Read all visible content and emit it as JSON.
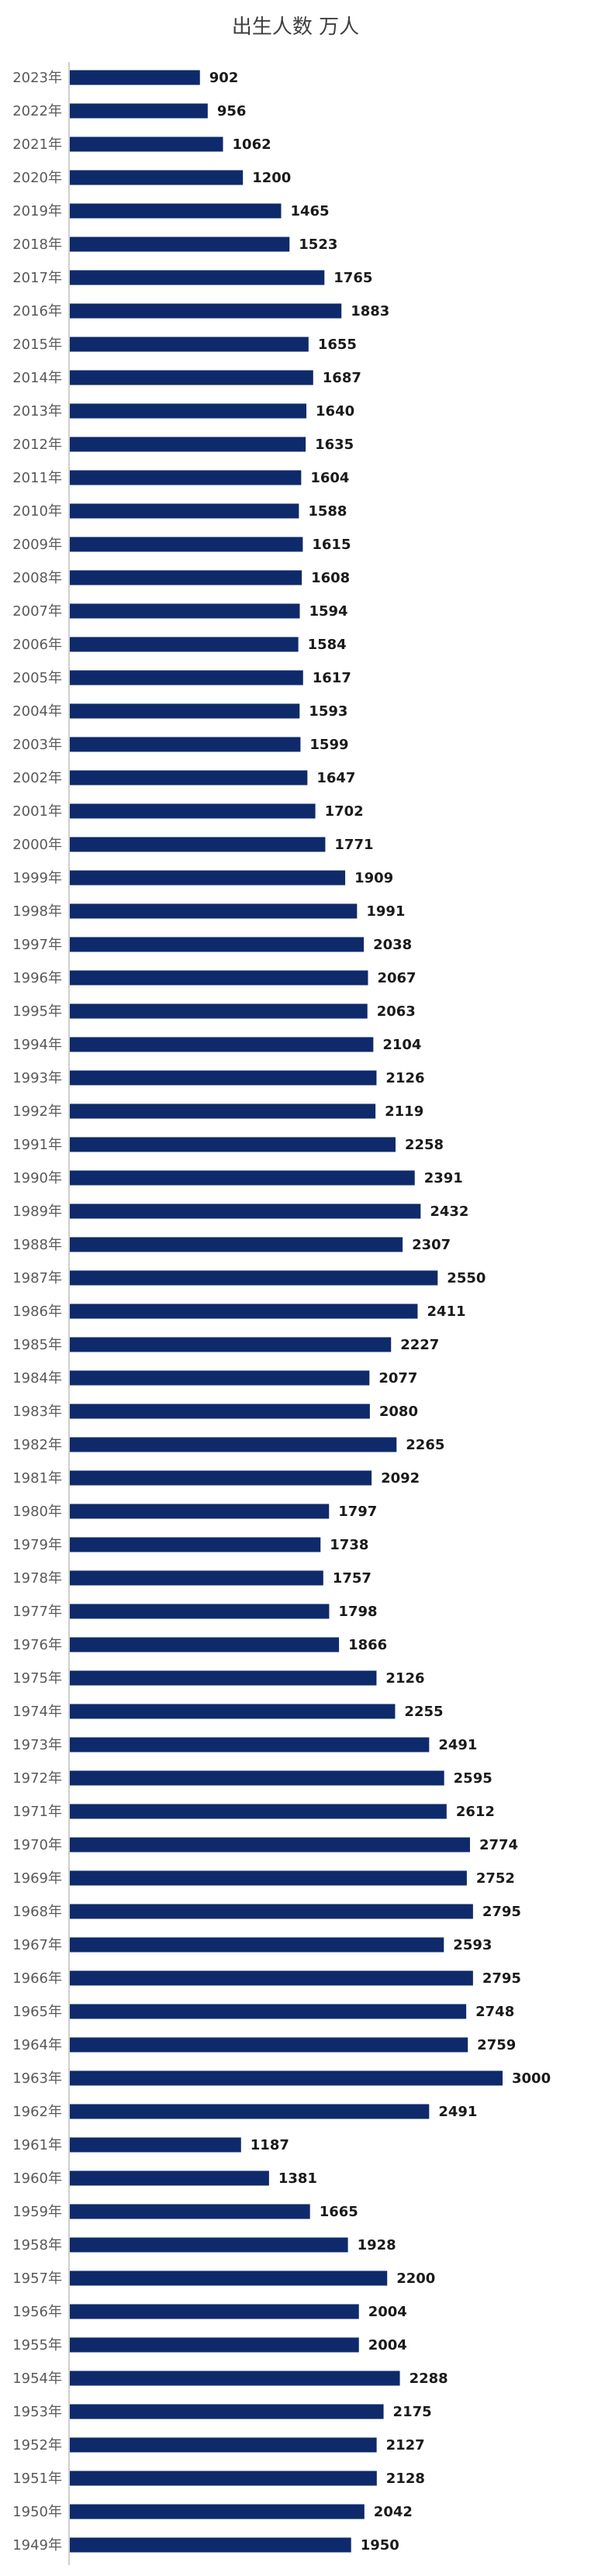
{
  "chart_data": {
    "type": "bar",
    "orientation": "horizontal",
    "title": "出生人数 万人",
    "xlabel": "",
    "ylabel": "",
    "bar_color": "#0e2a6b",
    "axis_color": "#bfbfbf",
    "grid": false,
    "legend": "none",
    "xlim": [
      0,
      3000
    ],
    "categories": [
      "2023年",
      "2022年",
      "2021年",
      "2020年",
      "2019年",
      "2018年",
      "2017年",
      "2016年",
      "2015年",
      "2014年",
      "2013年",
      "2012年",
      "2011年",
      "2010年",
      "2009年",
      "2008年",
      "2007年",
      "2006年",
      "2005年",
      "2004年",
      "2003年",
      "2002年",
      "2001年",
      "2000年",
      "1999年",
      "1998年",
      "1997年",
      "1996年",
      "1995年",
      "1994年",
      "1993年",
      "1992年",
      "1991年",
      "1990年",
      "1989年",
      "1988年",
      "1987年",
      "1986年",
      "1985年",
      "1984年",
      "1983年",
      "1982年",
      "1981年",
      "1980年",
      "1979年",
      "1978年",
      "1977年",
      "1976年",
      "1975年",
      "1974年",
      "1973年",
      "1972年",
      "1971年",
      "1970年",
      "1969年",
      "1968年",
      "1967年",
      "1966年",
      "1965年",
      "1964年",
      "1963年",
      "1962年",
      "1961年",
      "1960年",
      "1959年",
      "1958年",
      "1957年",
      "1956年",
      "1955年",
      "1954年",
      "1953年",
      "1952年",
      "1951年",
      "1950年",
      "1949年"
    ],
    "values": [
      902,
      956,
      1062,
      1200,
      1465,
      1523,
      1765,
      1883,
      1655,
      1687,
      1640,
      1635,
      1604,
      1588,
      1615,
      1608,
      1594,
      1584,
      1617,
      1593,
      1599,
      1647,
      1702,
      1771,
      1909,
      1991,
      2038,
      2067,
      2063,
      2104,
      2126,
      2119,
      2258,
      2391,
      2432,
      2307,
      2550,
      2411,
      2227,
      2077,
      2080,
      2265,
      2092,
      1797,
      1738,
      1757,
      1798,
      1866,
      2126,
      2255,
      2491,
      2595,
      2612,
      2774,
      2752,
      2795,
      2593,
      2795,
      2748,
      2759,
      3000,
      2491,
      1187,
      1381,
      1665,
      1928,
      2200,
      2004,
      2004,
      2288,
      2175,
      2127,
      2128,
      2042,
      1950
    ]
  }
}
